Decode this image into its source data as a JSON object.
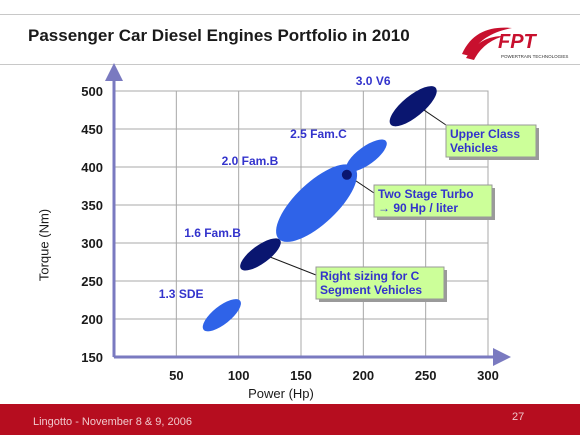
{
  "slide": {
    "title": "Passenger Car Diesel Engines Portfolio in 2010",
    "logo_text": "FPT",
    "logo_subtext": "POWERTRAIN TECHNOLOGIES",
    "footer_text": "Lingotto - November 8 & 9, 2006",
    "page_number": "27"
  },
  "colors": {
    "footer": "#b60d1f",
    "accent_red": "#c8102e",
    "bright_blue": "#2f63e8",
    "navy": "#0a1670",
    "label_blue": "#3333cc",
    "callout_bg": "#ccff99",
    "axis": "#7a7ac0"
  },
  "chart_data": {
    "type": "scatter",
    "title": "",
    "xlabel": "Power (Hp)",
    "ylabel": "Torque (Nm)",
    "xlim": [
      0,
      300
    ],
    "ylim": [
      150,
      500
    ],
    "x_ticks": [
      "50",
      "100",
      "150",
      "200",
      "250",
      "300"
    ],
    "y_ticks": [
      "500",
      "450",
      "400",
      "350",
      "300",
      "250",
      "200",
      "150"
    ],
    "grid": true,
    "engines": [
      {
        "name": "1.3 SDE",
        "x_range": [
          75,
          98
        ],
        "y_range": [
          190,
          220
        ],
        "color": "#2f63e8"
      },
      {
        "name": "1.6 Fam.B",
        "x_range": [
          105,
          130
        ],
        "y_range": [
          270,
          300
        ],
        "color": "#0a1670"
      },
      {
        "name": "2.0 Fam.B",
        "x_range": [
          135,
          190
        ],
        "y_range": [
          310,
          395
        ],
        "color": "#2f63e8"
      },
      {
        "name": "2.5 Fam.C",
        "x_range": [
          190,
          215
        ],
        "y_range": [
          400,
          430
        ],
        "color": "#2f63e8"
      },
      {
        "name": "3.0 V6",
        "x_range": [
          225,
          255
        ],
        "y_range": [
          460,
          500
        ],
        "color": "#0a1670"
      }
    ],
    "annotations": [
      {
        "text": [
          "Upper Class",
          "Vehicles"
        ],
        "points_to": "3.0 V6"
      },
      {
        "text": [
          "Two Stage Turbo",
          "→ 90 Hp / liter"
        ],
        "points_to": "2.0 Fam.B"
      },
      {
        "text": [
          "Right sizing for C",
          "Segment Vehicles"
        ],
        "points_to": "1.6 Fam.B"
      }
    ]
  }
}
